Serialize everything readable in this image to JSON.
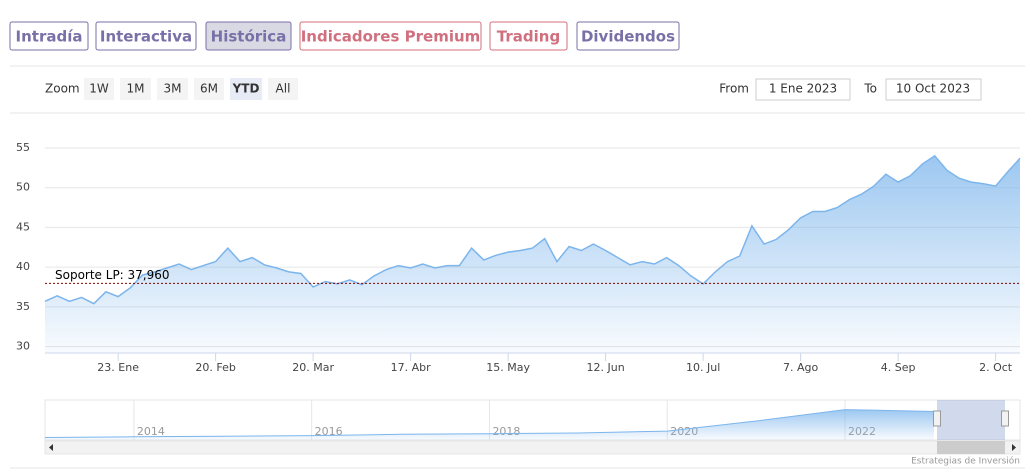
{
  "tabs": [
    "Intradía",
    "Interactiva",
    "Histórica",
    "Indicadores Premium",
    "Trading",
    "Dividendos"
  ],
  "active_tab": 2,
  "zoom": {
    "label": "Zoom",
    "buttons": [
      "1W",
      "1M",
      "3M",
      "6M",
      "YTD",
      "All"
    ],
    "active": 4
  },
  "range": {
    "from_label": "From",
    "from": "1 Ene 2023",
    "to_label": "To",
    "to": "10 Oct 2023"
  },
  "credit": "Estrategias de Inversión",
  "chart_data": [
    {
      "type": "area",
      "categories": [
        null,
        null,
        null,
        null,
        null,
        null,
        "23. Ene",
        null,
        null,
        null,
        null,
        null,
        null,
        null,
        "20. Feb",
        null,
        null,
        null,
        null,
        null,
        null,
        null,
        "20. Mar",
        null,
        null,
        null,
        null,
        null,
        null,
        null,
        "17. Abr",
        null,
        null,
        null,
        null,
        null,
        null,
        null,
        "15. May",
        null,
        null,
        null,
        null,
        null,
        null,
        null,
        "12. Jun",
        null,
        null,
        null,
        null,
        null,
        null,
        null,
        "10. Jul",
        null,
        null,
        null,
        null,
        null,
        null,
        null,
        "7. Ago",
        null,
        null,
        null,
        null,
        null,
        null,
        null,
        "4. Sep",
        null,
        null,
        null,
        null,
        null,
        null,
        null,
        "2. Oct",
        null,
        null
      ],
      "series": [
        {
          "color": "#7cb5ec",
          "values": [
            35.7,
            36.4,
            35.7,
            36.2,
            35.4,
            36.9,
            36.3,
            37.4,
            39.0,
            39.4,
            39.9,
            40.4,
            39.7,
            40.2,
            40.7,
            42.4,
            40.7,
            41.2,
            40.3,
            39.9,
            39.4,
            39.2,
            37.5,
            38.2,
            37.9,
            38.4,
            37.8,
            38.9,
            39.7,
            40.2,
            39.9,
            40.4,
            39.9,
            40.2,
            40.2,
            42.4,
            40.9,
            41.5,
            41.9,
            42.1,
            42.4,
            43.6,
            40.7,
            42.6,
            42.1,
            42.9,
            42.1,
            41.2,
            40.3,
            40.7,
            40.4,
            41.2,
            40.2,
            38.9,
            37.9,
            39.4,
            40.7,
            41.4,
            45.2,
            42.9,
            43.5,
            44.7,
            46.2,
            47.0,
            47.0,
            47.5,
            48.5,
            49.2,
            50.2,
            51.7,
            50.7,
            51.5,
            53.0,
            54.0,
            52.2,
            51.2,
            50.7,
            50.5,
            50.2,
            52.0,
            53.7
          ]
        }
      ],
      "ylim": [
        29.2,
        59.4
      ],
      "yticks": [
        30,
        35,
        40,
        45,
        50,
        55
      ],
      "grid": true,
      "plot_lines": [
        {
          "value": 37.96,
          "label": "Soporte LP: 37,960",
          "color": "#8b0000"
        }
      ]
    },
    {
      "type": "area",
      "x": [
        2013,
        2014,
        2015,
        2016,
        2017,
        2018,
        2019,
        2020,
        2021,
        2022,
        2023
      ],
      "series": [
        {
          "color": "#7cb5ec",
          "values": [
            4,
            5,
            6,
            7,
            9,
            10,
            11,
            14,
            30,
            48,
            45
          ]
        }
      ],
      "xlim": [
        2013,
        2023.8
      ],
      "xticks": [
        2014,
        2016,
        2018,
        2020,
        2022
      ],
      "ylim": [
        0,
        60
      ]
    }
  ]
}
